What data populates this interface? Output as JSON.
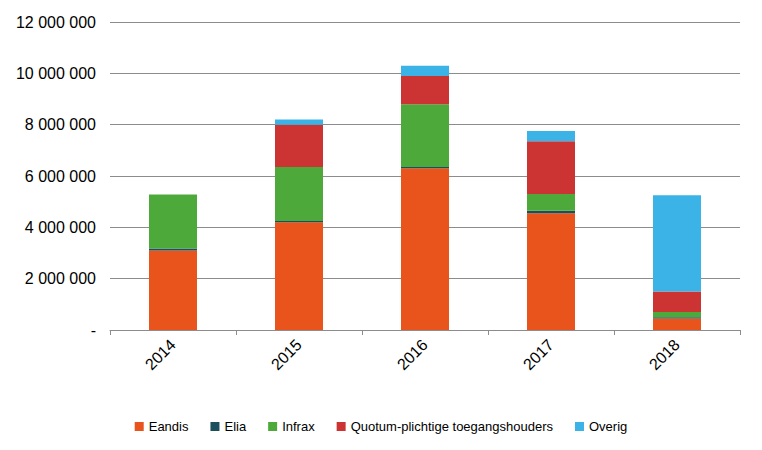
{
  "chart_data": {
    "type": "bar",
    "stacked": true,
    "grid": true,
    "legend": "bottom",
    "categories": [
      "2014",
      "2015",
      "2016",
      "2017",
      "2018"
    ],
    "series": [
      {
        "name": "Eandis",
        "color": "#E8541C",
        "values": [
          3100000,
          4200000,
          6300000,
          4550000,
          450000
        ]
      },
      {
        "name": "Elia",
        "color": "#1B4F5C",
        "values": [
          80000,
          50000,
          50000,
          100000,
          50000
        ]
      },
      {
        "name": "Infrax",
        "color": "#4DAA3A",
        "values": [
          2100000,
          2100000,
          2450000,
          650000,
          200000
        ]
      },
      {
        "name": "Quotum-plichtige toegangshouders",
        "color": "#CC3333",
        "values": [
          0,
          1650000,
          1100000,
          2050000,
          800000
        ]
      },
      {
        "name": "Overig",
        "color": "#3BB3E6",
        "values": [
          0,
          200000,
          400000,
          400000,
          3750000
        ]
      }
    ],
    "ylim": [
      0,
      12000000
    ],
    "yticks": [
      {
        "value": 0,
        "label": "-"
      },
      {
        "value": 2000000,
        "label": "2 000 000"
      },
      {
        "value": 4000000,
        "label": "4 000 000"
      },
      {
        "value": 6000000,
        "label": "6 000 000"
      },
      {
        "value": 8000000,
        "label": "8 000 000"
      },
      {
        "value": 10000000,
        "label": "10 000 000"
      },
      {
        "value": 12000000,
        "label": "12 000 000"
      }
    ]
  }
}
